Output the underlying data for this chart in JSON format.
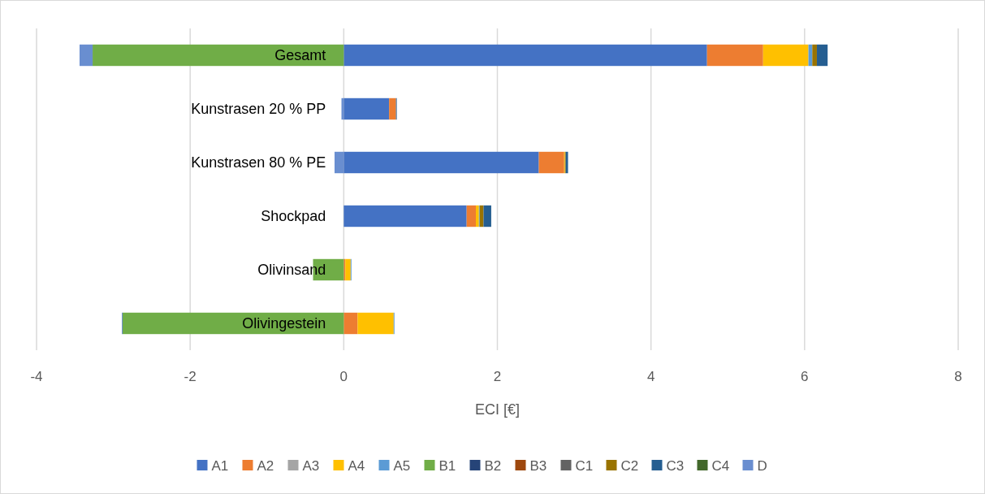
{
  "chart_data": {
    "type": "bar",
    "orientation": "horizontal",
    "stacked": true,
    "xlabel": "ECI [€]",
    "categories": [
      "Gesamt",
      "Kunstrasen 20 % PP",
      "Kunstrasen 80 % PE",
      "Shockpad",
      "Olivinsand",
      "Olivingestein"
    ],
    "xlim": [
      -4,
      8
    ],
    "xticks": [
      -4,
      -2,
      0,
      2,
      4,
      6,
      8
    ],
    "grid": "x",
    "legend": "bottom",
    "series": [
      {
        "name": "A1",
        "color": "#4472c4",
        "values": [
          4.73,
          0.59,
          2.54,
          1.6,
          0,
          0
        ]
      },
      {
        "name": "A2",
        "color": "#ed7d31",
        "values": [
          0.73,
          0.09,
          0.33,
          0.12,
          0.02,
          0.18
        ]
      },
      {
        "name": "A3",
        "color": "#a5a5a5",
        "values": [
          0,
          0,
          0,
          0,
          0,
          0
        ]
      },
      {
        "name": "A4",
        "color": "#ffc000",
        "values": [
          0.59,
          0,
          0.01,
          0.04,
          0.07,
          0.47
        ]
      },
      {
        "name": "A5",
        "color": "#5b9bd5",
        "values": [
          0.05,
          0,
          0,
          0.01,
          0.01,
          0.01
        ]
      },
      {
        "name": "B1",
        "color": "#70ad47",
        "values": [
          -3.27,
          0,
          0,
          0,
          -0.4,
          -2.88
        ]
      },
      {
        "name": "B2",
        "color": "#264478",
        "values": [
          0,
          0,
          0,
          0,
          0,
          0
        ]
      },
      {
        "name": "B3",
        "color": "#9e480e",
        "values": [
          0,
          0,
          0,
          0,
          0,
          0
        ]
      },
      {
        "name": "C1",
        "color": "#636363",
        "values": [
          0,
          0,
          0,
          0,
          0,
          0
        ]
      },
      {
        "name": "C2",
        "color": "#997300",
        "values": [
          0.06,
          0,
          0.01,
          0.05,
          0,
          0
        ]
      },
      {
        "name": "C3",
        "color": "#255e91",
        "values": [
          0.14,
          0.01,
          0.03,
          0.1,
          0,
          0
        ]
      },
      {
        "name": "C4",
        "color": "#43682b",
        "values": [
          0,
          0,
          0,
          0,
          0,
          0
        ]
      },
      {
        "name": "D",
        "color": "#698ed0",
        "values": [
          -0.17,
          -0.03,
          -0.12,
          0,
          0,
          -0.01
        ]
      }
    ]
  }
}
